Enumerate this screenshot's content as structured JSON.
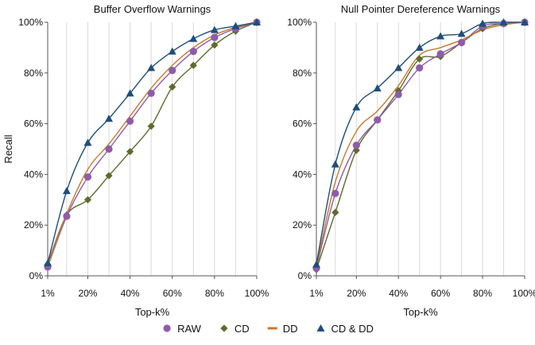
{
  "chart_data": [
    {
      "type": "line",
      "title": "Buffer Overflow Warnings",
      "xlabel": "Top-k%",
      "ylabel": "Recall",
      "x": [
        1,
        10,
        20,
        30,
        40,
        50,
        60,
        70,
        80,
        90,
        100
      ],
      "x_tick_values": [
        1,
        20,
        40,
        60,
        80,
        100
      ],
      "x_tick_labels": [
        "1%",
        "20%",
        "40%",
        "60%",
        "80%",
        "100%"
      ],
      "y_tick_values": [
        0,
        20,
        40,
        60,
        80,
        100
      ],
      "y_tick_labels": [
        "0%",
        "20%",
        "40%",
        "60%",
        "80%",
        "100%"
      ],
      "xlim": [
        1,
        100
      ],
      "ylim": [
        0,
        100
      ],
      "grid": "vertical",
      "series": [
        {
          "name": "RAW",
          "marker": "circle",
          "color": "#8e5ca8",
          "values": [
            3.5,
            23.5,
            39,
            50,
            61,
            72,
            81,
            88.5,
            94,
            97.5,
            100
          ]
        },
        {
          "name": "CD",
          "marker": "diamond",
          "color": "#5e6b2e",
          "values": [
            4.5,
            24,
            30,
            39.5,
            49,
            59,
            74.5,
            83,
            91,
            96.5,
            100
          ]
        },
        {
          "name": "DD",
          "marker": "dash",
          "color": "#c8782a",
          "values": [
            4,
            24.5,
            42,
            52,
            63,
            74,
            83,
            90,
            95,
            98,
            100
          ]
        },
        {
          "name": "CD & DD",
          "marker": "triangle",
          "color": "#1f4e79",
          "values": [
            5,
            33.5,
            52.5,
            62,
            72,
            82,
            88.5,
            93.5,
            97,
            98.5,
            100
          ]
        }
      ]
    },
    {
      "type": "line",
      "title": "Null Pointer Dereference Warnings",
      "xlabel": "Top-k%",
      "ylabel": "",
      "x": [
        1,
        10,
        20,
        30,
        40,
        50,
        60,
        70,
        80,
        90,
        100
      ],
      "x_tick_values": [
        1,
        20,
        40,
        60,
        80,
        100
      ],
      "x_tick_labels": [
        "1%",
        "20%",
        "40%",
        "60%",
        "80%",
        "100%"
      ],
      "y_tick_values": [
        0,
        20,
        40,
        60,
        80,
        100
      ],
      "y_tick_labels": [
        "0%",
        "20%",
        "40%",
        "60%",
        "80%",
        "100%"
      ],
      "xlim": [
        1,
        100
      ],
      "ylim": [
        0,
        100
      ],
      "grid": "vertical",
      "series": [
        {
          "name": "RAW",
          "marker": "circle",
          "color": "#8e5ca8",
          "values": [
            3,
            32.5,
            51.5,
            61.5,
            71.5,
            82,
            87.5,
            92,
            98.5,
            99.5,
            100
          ]
        },
        {
          "name": "CD",
          "marker": "diamond",
          "color": "#5e6b2e",
          "values": [
            2.5,
            25,
            49.5,
            61.5,
            73,
            85.5,
            86.5,
            92,
            97.5,
            99.5,
            100
          ]
        },
        {
          "name": "DD",
          "marker": "dash",
          "color": "#c8782a",
          "values": [
            3.5,
            37,
            57,
            65,
            75,
            87,
            90,
            93,
            97,
            99,
            100
          ]
        },
        {
          "name": "CD & DD",
          "marker": "triangle",
          "color": "#1f4e79",
          "values": [
            4.5,
            44,
            66.5,
            74,
            82,
            90,
            94.5,
            95.5,
            99.5,
            100,
            100
          ]
        }
      ]
    }
  ],
  "legend": {
    "position": "bottom-center",
    "items": [
      {
        "label": "RAW",
        "marker": "circle",
        "color": "#8e5ca8"
      },
      {
        "label": "CD",
        "marker": "diamond",
        "color": "#5e6b2e"
      },
      {
        "label": "DD",
        "marker": "dash",
        "color": "#c8782a"
      },
      {
        "label": "CD & DD",
        "marker": "triangle",
        "color": "#1f4e79"
      }
    ]
  }
}
